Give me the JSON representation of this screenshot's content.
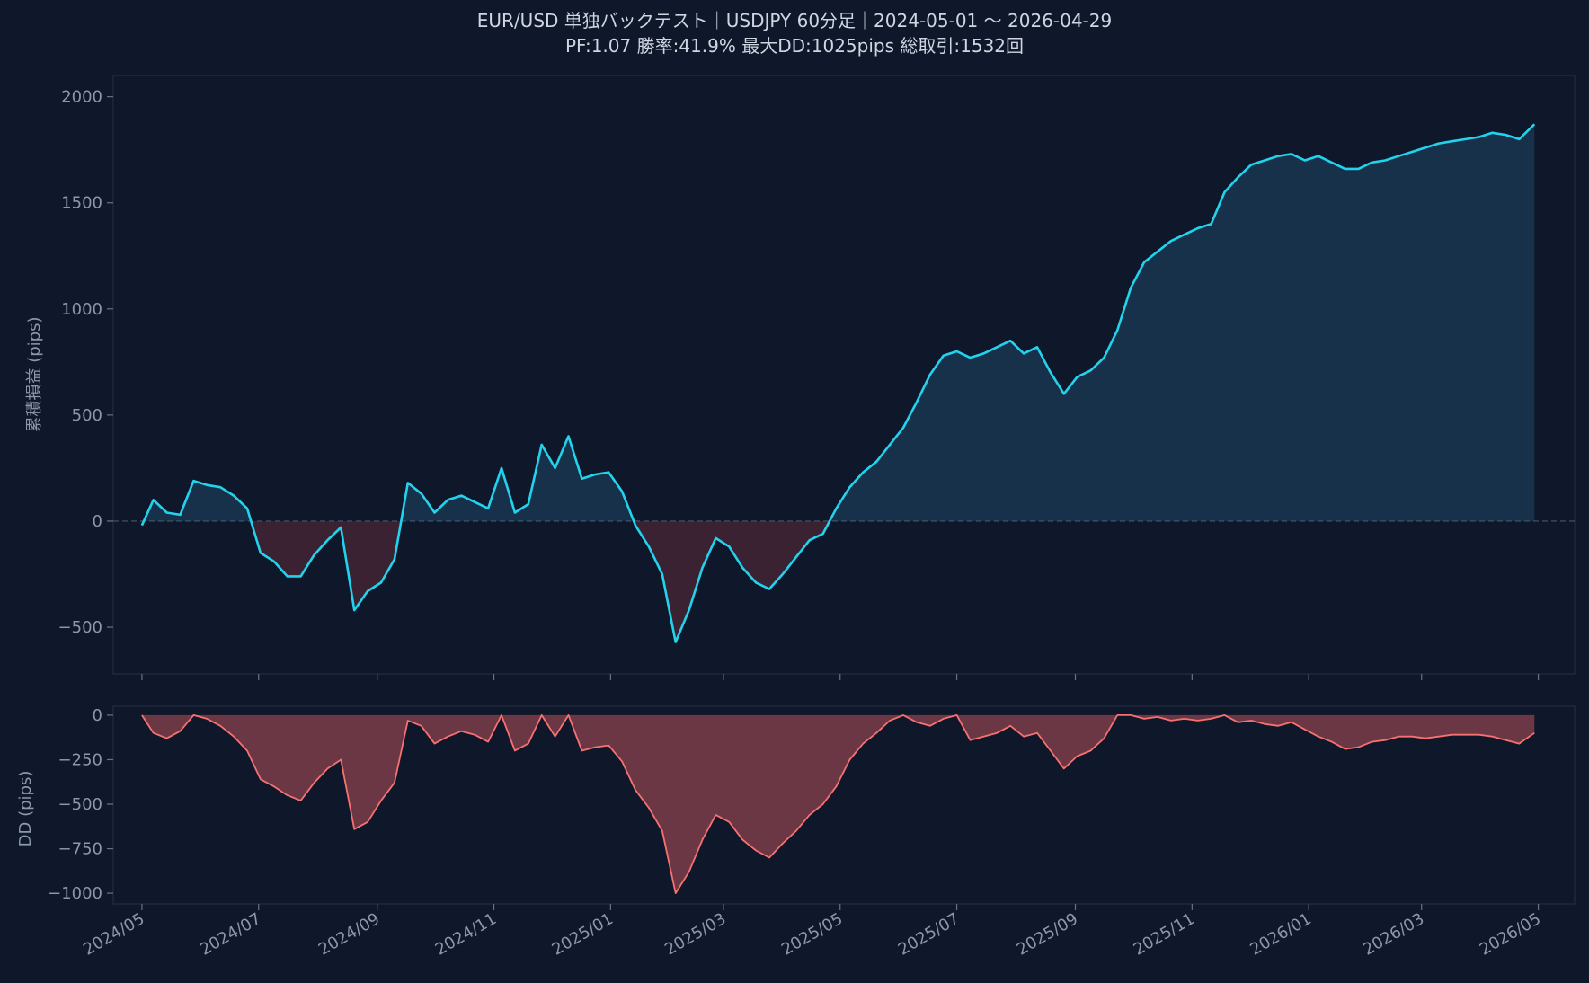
{
  "title_line1": "EUR/USD 単独バックテスト｜USDJPY 60分足｜2024-05-01 〜 2026-04-29",
  "title_line2": "PF:1.07  勝率:41.9%  最大DD:1025pips  総取引:1532回",
  "colors": {
    "background": "#0f172a",
    "equity_line": "#22d3ee",
    "equity_fill_pos": "#163149",
    "equity_fill_neg": "#3a2233",
    "dd_line": "#f87171",
    "dd_fill": "#6b3744",
    "zero_line": "#475569",
    "frame": "#1e293b"
  },
  "chart_data": [
    {
      "type": "line",
      "ylabel": "累積損益 (pips)",
      "ylim": [
        -720,
        2100
      ],
      "yticks": [
        -500,
        0,
        500,
        1000,
        1500,
        2000
      ],
      "ytick_labels": [
        "−500",
        "0",
        "500",
        "1000",
        "1500",
        "2000"
      ],
      "xlim": [
        "2024-04-16",
        "2026-05-20"
      ],
      "zero_line": true,
      "series": [
        {
          "x": [
            "2024-05-01",
            "2024-05-07",
            "2024-05-14",
            "2024-05-21",
            "2024-05-28",
            "2024-06-04",
            "2024-06-11",
            "2024-06-18",
            "2024-06-25",
            "2024-07-02",
            "2024-07-09",
            "2024-07-16",
            "2024-07-23",
            "2024-07-30",
            "2024-08-06",
            "2024-08-13",
            "2024-08-20",
            "2024-08-27",
            "2024-09-03",
            "2024-09-10",
            "2024-09-17",
            "2024-09-24",
            "2024-10-01",
            "2024-10-08",
            "2024-10-15",
            "2024-10-22",
            "2024-10-29",
            "2024-11-05",
            "2024-11-12",
            "2024-11-19",
            "2024-11-26",
            "2024-12-03",
            "2024-12-10",
            "2024-12-17",
            "2024-12-24",
            "2024-12-31",
            "2025-01-07",
            "2025-01-14",
            "2025-01-21",
            "2025-01-28",
            "2025-02-04",
            "2025-02-11",
            "2025-02-18",
            "2025-02-25",
            "2025-03-04",
            "2025-03-11",
            "2025-03-18",
            "2025-03-25",
            "2025-04-01",
            "2025-04-08",
            "2025-04-15",
            "2025-04-22",
            "2025-04-29",
            "2025-05-06",
            "2025-05-13",
            "2025-05-20",
            "2025-05-27",
            "2025-06-03",
            "2025-06-10",
            "2025-06-17",
            "2025-06-24",
            "2025-07-01",
            "2025-07-08",
            "2025-07-15",
            "2025-07-22",
            "2025-07-29",
            "2025-08-05",
            "2025-08-12",
            "2025-08-19",
            "2025-08-26",
            "2025-09-02",
            "2025-09-09",
            "2025-09-16",
            "2025-09-23",
            "2025-09-30",
            "2025-10-07",
            "2025-10-14",
            "2025-10-21",
            "2025-10-28",
            "2025-11-04",
            "2025-11-11",
            "2025-11-18",
            "2025-11-25",
            "2025-12-02",
            "2025-12-09",
            "2025-12-16",
            "2025-12-23",
            "2025-12-30",
            "2026-01-06",
            "2026-01-13",
            "2026-01-20",
            "2026-01-27",
            "2026-02-03",
            "2026-02-10",
            "2026-02-17",
            "2026-02-24",
            "2026-03-03",
            "2026-03-10",
            "2026-03-17",
            "2026-03-24",
            "2026-03-31",
            "2026-04-07",
            "2026-04-14",
            "2026-04-21",
            "2026-04-29"
          ],
          "values": [
            -20,
            100,
            40,
            30,
            190,
            170,
            160,
            120,
            60,
            -150,
            -190,
            -260,
            -260,
            -160,
            -90,
            -30,
            -420,
            -330,
            -290,
            -180,
            180,
            130,
            40,
            100,
            120,
            90,
            60,
            250,
            40,
            80,
            360,
            250,
            400,
            200,
            220,
            230,
            140,
            -20,
            -120,
            -250,
            -570,
            -420,
            -220,
            -80,
            -120,
            -220,
            -290,
            -320,
            -250,
            -170,
            -90,
            -60,
            60,
            160,
            230,
            280,
            360,
            440,
            560,
            690,
            780,
            800,
            770,
            790,
            820,
            850,
            790,
            820,
            700,
            600,
            680,
            710,
            770,
            900,
            1100,
            1220,
            1270,
            1320,
            1350,
            1380,
            1400,
            1550,
            1620,
            1680,
            1700,
            1720,
            1730,
            1700,
            1720,
            1690,
            1660,
            1660,
            1690,
            1700,
            1720,
            1740,
            1760,
            1780,
            1790,
            1800,
            1810,
            1830,
            1820,
            1800,
            1870
          ]
        }
      ]
    },
    {
      "type": "area",
      "ylabel": "DD (pips)",
      "ylim": [
        -1060,
        50
      ],
      "yticks": [
        -1000,
        -750,
        -500,
        -250,
        0
      ],
      "ytick_labels": [
        "−1000",
        "−750",
        "−500",
        "−250",
        "0"
      ],
      "xlim": [
        "2024-04-16",
        "2026-05-20"
      ],
      "xticks": [
        "2024-05-01",
        "2024-07-01",
        "2024-09-01",
        "2024-11-01",
        "2025-01-01",
        "2025-03-01",
        "2025-05-01",
        "2025-07-01",
        "2025-09-01",
        "2025-11-01",
        "2026-01-01",
        "2026-03-01",
        "2026-05-01"
      ],
      "xtick_labels": [
        "2024/05",
        "2024/07",
        "2024/09",
        "2024/11",
        "2025/01",
        "2025/03",
        "2025/05",
        "2025/07",
        "2025/09",
        "2025/11",
        "2026/01",
        "2026/03",
        "2026/05"
      ],
      "series": [
        {
          "x": [
            "2024-05-01",
            "2024-05-07",
            "2024-05-14",
            "2024-05-21",
            "2024-05-28",
            "2024-06-04",
            "2024-06-11",
            "2024-06-18",
            "2024-06-25",
            "2024-07-02",
            "2024-07-09",
            "2024-07-16",
            "2024-07-23",
            "2024-07-30",
            "2024-08-06",
            "2024-08-13",
            "2024-08-20",
            "2024-08-27",
            "2024-09-03",
            "2024-09-10",
            "2024-09-17",
            "2024-09-24",
            "2024-10-01",
            "2024-10-08",
            "2024-10-15",
            "2024-10-22",
            "2024-10-29",
            "2024-11-05",
            "2024-11-12",
            "2024-11-19",
            "2024-11-26",
            "2024-12-03",
            "2024-12-10",
            "2024-12-17",
            "2024-12-24",
            "2024-12-31",
            "2025-01-07",
            "2025-01-14",
            "2025-01-21",
            "2025-01-28",
            "2025-02-04",
            "2025-02-11",
            "2025-02-18",
            "2025-02-25",
            "2025-03-04",
            "2025-03-11",
            "2025-03-18",
            "2025-03-25",
            "2025-04-01",
            "2025-04-08",
            "2025-04-15",
            "2025-04-22",
            "2025-04-29",
            "2025-05-06",
            "2025-05-13",
            "2025-05-20",
            "2025-05-27",
            "2025-06-03",
            "2025-06-10",
            "2025-06-17",
            "2025-06-24",
            "2025-07-01",
            "2025-07-08",
            "2025-07-15",
            "2025-07-22",
            "2025-07-29",
            "2025-08-05",
            "2025-08-12",
            "2025-08-19",
            "2025-08-26",
            "2025-09-02",
            "2025-09-09",
            "2025-09-16",
            "2025-09-23",
            "2025-09-30",
            "2025-10-07",
            "2025-10-14",
            "2025-10-21",
            "2025-10-28",
            "2025-11-04",
            "2025-11-11",
            "2025-11-18",
            "2025-11-25",
            "2025-12-02",
            "2025-12-09",
            "2025-12-16",
            "2025-12-23",
            "2025-12-30",
            "2026-01-06",
            "2026-01-13",
            "2026-01-20",
            "2026-01-27",
            "2026-02-03",
            "2026-02-10",
            "2026-02-17",
            "2026-02-24",
            "2026-03-03",
            "2026-03-10",
            "2026-03-17",
            "2026-03-24",
            "2026-03-31",
            "2026-04-07",
            "2026-04-14",
            "2026-04-21",
            "2026-04-29"
          ],
          "values": [
            0,
            -100,
            -130,
            -90,
            0,
            -20,
            -60,
            -120,
            -200,
            -360,
            -400,
            -450,
            -480,
            -380,
            -300,
            -250,
            -640,
            -600,
            -480,
            -380,
            -30,
            -60,
            -160,
            -120,
            -90,
            -110,
            -150,
            0,
            -200,
            -160,
            0,
            -120,
            0,
            -200,
            -180,
            -170,
            -260,
            -420,
            -520,
            -650,
            -1000,
            -880,
            -700,
            -560,
            -600,
            -700,
            -760,
            -800,
            -720,
            -650,
            -560,
            -500,
            -400,
            -250,
            -160,
            -100,
            -30,
            0,
            -40,
            -60,
            -20,
            0,
            -140,
            -120,
            -100,
            -60,
            -120,
            -100,
            -200,
            -300,
            -230,
            -200,
            -130,
            0,
            0,
            -20,
            -10,
            -30,
            -20,
            -30,
            -20,
            0,
            -40,
            -30,
            -50,
            -60,
            -40,
            -80,
            -120,
            -150,
            -190,
            -180,
            -150,
            -140,
            -120,
            -120,
            -130,
            -120,
            -110,
            -110,
            -110,
            -120,
            -140,
            -160,
            -100
          ]
        }
      ]
    }
  ]
}
